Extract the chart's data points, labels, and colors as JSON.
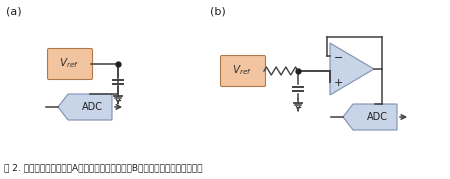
{
  "vref_fill": "#f2c4a0",
  "vref_edge": "#b07848",
  "adc_fill": "#c8d4e8",
  "adc_edge": "#8090b0",
  "opamp_fill": "#c8d4e8",
  "opamp_edge": "#8090b0",
  "line_color": "#404040",
  "dot_color": "#202020",
  "label_a": "(a)",
  "label_b": "(b)",
  "caption": "图 2. 电压基准通常需要（A）一只旁路电容，或（B）一只带缓冲放大器的电容",
  "caption_fontsize": 6.5
}
